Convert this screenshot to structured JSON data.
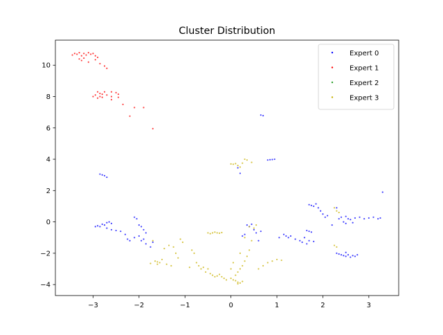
{
  "chart_data": {
    "type": "scatter",
    "title": "Cluster Distribution",
    "xlabel": "",
    "ylabel": "",
    "xlim": [
      -3.82,
      3.65
    ],
    "ylim": [
      -4.7,
      11.6
    ],
    "xticks": [
      -3,
      -2,
      -1,
      0,
      1,
      2,
      3
    ],
    "xtick_labels": [
      "−3",
      "−2",
      "−1",
      "0",
      "1",
      "2",
      "3"
    ],
    "yticks": [
      -4,
      -2,
      0,
      2,
      4,
      6,
      8,
      10
    ],
    "ytick_labels": [
      "−4",
      "−2",
      "0",
      "2",
      "4",
      "6",
      "8",
      "10"
    ],
    "grid": false,
    "legend_position": "top-right",
    "series": [
      {
        "name": "Expert 0",
        "color": "#0000ff",
        "points": [
          [
            -2.85,
            3.05
          ],
          [
            -2.8,
            3.0
          ],
          [
            -2.75,
            2.95
          ],
          [
            -2.7,
            2.85
          ],
          [
            0.65,
            6.82
          ],
          [
            0.7,
            6.78
          ],
          [
            0.8,
            3.95
          ],
          [
            0.85,
            3.97
          ],
          [
            0.9,
            3.98
          ],
          [
            0.95,
            4.0
          ],
          [
            0.15,
            3.45
          ],
          [
            0.2,
            3.1
          ],
          [
            3.3,
            1.9
          ],
          [
            -2.95,
            -0.3
          ],
          [
            -2.9,
            -0.25
          ],
          [
            -2.85,
            -0.3
          ],
          [
            -2.8,
            -0.15
          ],
          [
            -2.75,
            -0.2
          ],
          [
            -2.7,
            -0.05
          ],
          [
            -2.65,
            0.0
          ],
          [
            -2.6,
            -0.1
          ],
          [
            -2.7,
            -0.4
          ],
          [
            -2.6,
            -0.5
          ],
          [
            -2.5,
            -0.55
          ],
          [
            -2.4,
            -0.6
          ],
          [
            -2.3,
            -0.8
          ],
          [
            -2.25,
            -1.1
          ],
          [
            -2.2,
            -1.2
          ],
          [
            -2.1,
            -1.0
          ],
          [
            -2.0,
            -0.9
          ],
          [
            -1.95,
            -1.2
          ],
          [
            -1.9,
            -1.1
          ],
          [
            -1.85,
            -1.4
          ],
          [
            -1.75,
            -1.6
          ],
          [
            -1.7,
            -1.3
          ],
          [
            -2.1,
            0.3
          ],
          [
            -2.05,
            0.2
          ],
          [
            -2.0,
            -0.2
          ],
          [
            -1.95,
            -0.3
          ],
          [
            -1.9,
            -0.5
          ],
          [
            -1.85,
            -0.7
          ],
          [
            0.35,
            -0.2
          ],
          [
            0.4,
            -0.3
          ],
          [
            0.45,
            -0.15
          ],
          [
            0.5,
            -0.5
          ],
          [
            0.55,
            -0.7
          ],
          [
            0.6,
            -1.2
          ],
          [
            0.65,
            -0.6
          ],
          [
            0.3,
            -0.8
          ],
          [
            0.25,
            -0.9
          ],
          [
            1.05,
            -1.0
          ],
          [
            1.15,
            -0.8
          ],
          [
            1.2,
            -0.9
          ],
          [
            1.25,
            -1.0
          ],
          [
            1.3,
            -0.9
          ],
          [
            1.4,
            -1.1
          ],
          [
            1.5,
            -1.2
          ],
          [
            1.55,
            -1.3
          ],
          [
            1.6,
            -1.0
          ],
          [
            1.7,
            -1.2
          ],
          [
            1.8,
            -1.25
          ],
          [
            1.65,
            -1.4
          ],
          [
            1.65,
            -0.55
          ],
          [
            1.7,
            -0.6
          ],
          [
            1.75,
            -0.65
          ],
          [
            1.7,
            1.1
          ],
          [
            1.75,
            1.05
          ],
          [
            1.8,
            1.0
          ],
          [
            1.85,
            1.15
          ],
          [
            1.9,
            0.9
          ],
          [
            1.95,
            0.7
          ],
          [
            2.0,
            0.5
          ],
          [
            2.05,
            0.3
          ],
          [
            2.1,
            0.4
          ],
          [
            2.2,
            -0.2
          ],
          [
            2.3,
            0.9
          ],
          [
            2.35,
            0.2
          ],
          [
            2.4,
            0.3
          ],
          [
            2.45,
            0.0
          ],
          [
            2.5,
            -0.1
          ],
          [
            2.55,
            0.2
          ],
          [
            2.6,
            0.15
          ],
          [
            2.7,
            0.25
          ],
          [
            2.8,
            0.3
          ],
          [
            2.9,
            0.2
          ],
          [
            3.0,
            0.25
          ],
          [
            3.1,
            0.3
          ],
          [
            3.2,
            0.2
          ],
          [
            3.25,
            0.25
          ],
          [
            2.65,
            -0.05
          ],
          [
            2.5,
            0.35
          ],
          [
            2.3,
            -2.0
          ],
          [
            2.35,
            -2.05
          ],
          [
            2.4,
            -2.1
          ],
          [
            2.45,
            -2.15
          ],
          [
            2.5,
            -2.2
          ],
          [
            2.55,
            -2.1
          ],
          [
            2.6,
            -2.25
          ],
          [
            2.65,
            -2.15
          ],
          [
            2.7,
            -2.2
          ],
          [
            2.75,
            -2.1
          ],
          [
            2.5,
            -1.95
          ]
        ]
      },
      {
        "name": "Expert 1",
        "color": "#ff0000",
        "points": [
          [
            -3.45,
            10.65
          ],
          [
            -3.4,
            10.75
          ],
          [
            -3.35,
            10.7
          ],
          [
            -3.3,
            10.8
          ],
          [
            -3.25,
            10.6
          ],
          [
            -3.2,
            10.75
          ],
          [
            -3.15,
            10.65
          ],
          [
            -3.1,
            10.8
          ],
          [
            -3.05,
            10.7
          ],
          [
            -3.0,
            10.75
          ],
          [
            -2.95,
            10.6
          ],
          [
            -2.9,
            10.5
          ],
          [
            -3.3,
            10.4
          ],
          [
            -3.25,
            10.3
          ],
          [
            -3.2,
            10.45
          ],
          [
            -3.1,
            10.2
          ],
          [
            -2.95,
            10.35
          ],
          [
            -2.85,
            10.1
          ],
          [
            -2.75,
            9.95
          ],
          [
            -2.7,
            9.8
          ],
          [
            -2.9,
            8.3
          ],
          [
            -2.85,
            8.2
          ],
          [
            -2.8,
            8.15
          ],
          [
            -2.75,
            8.3
          ],
          [
            -2.6,
            8.3
          ],
          [
            -2.5,
            8.25
          ],
          [
            -2.45,
            8.15
          ],
          [
            -2.9,
            7.9
          ],
          [
            -2.85,
            8.0
          ],
          [
            -2.8,
            7.95
          ],
          [
            -2.95,
            8.1
          ],
          [
            -3.0,
            8.0
          ],
          [
            -2.7,
            8.1
          ],
          [
            -2.6,
            8.0
          ],
          [
            -2.45,
            7.95
          ],
          [
            -2.6,
            7.8
          ],
          [
            -2.35,
            7.5
          ],
          [
            -2.2,
            6.75
          ],
          [
            -2.1,
            7.3
          ],
          [
            -1.9,
            7.3
          ],
          [
            -1.7,
            5.95
          ]
        ]
      },
      {
        "name": "Expert 2",
        "color": "#2ca02c",
        "points": []
      },
      {
        "name": "Expert 3",
        "color": "#c8b000",
        "points": [
          [
            0.0,
            3.7
          ],
          [
            0.05,
            3.68
          ],
          [
            0.1,
            3.72
          ],
          [
            0.15,
            3.6
          ],
          [
            0.2,
            3.5
          ],
          [
            0.25,
            3.75
          ],
          [
            0.3,
            4.0
          ],
          [
            0.35,
            3.95
          ],
          [
            0.45,
            3.8
          ],
          [
            -1.7,
            -1.2
          ],
          [
            -1.65,
            -2.5
          ],
          [
            -1.6,
            -2.7
          ],
          [
            -1.55,
            -2.6
          ],
          [
            -1.5,
            -2.4
          ],
          [
            -1.45,
            -1.7
          ],
          [
            -1.4,
            -2.7
          ],
          [
            -1.35,
            -1.5
          ],
          [
            -1.3,
            -2.8
          ],
          [
            -1.25,
            -1.6
          ],
          [
            -1.2,
            -2.0
          ],
          [
            -1.15,
            -2.3
          ],
          [
            -1.1,
            -1.1
          ],
          [
            -1.05,
            -1.3
          ],
          [
            -0.9,
            -2.9
          ],
          [
            -0.85,
            -1.8
          ],
          [
            -0.8,
            -2.0
          ],
          [
            -0.75,
            -2.6
          ],
          [
            -0.7,
            -2.8
          ],
          [
            -0.65,
            -3.0
          ],
          [
            -0.6,
            -2.9
          ],
          [
            -0.55,
            -3.2
          ],
          [
            -0.5,
            -3.0
          ],
          [
            -0.45,
            -3.3
          ],
          [
            -0.4,
            -3.4
          ],
          [
            -0.35,
            -3.5
          ],
          [
            -0.3,
            -3.45
          ],
          [
            -0.25,
            -3.35
          ],
          [
            -0.2,
            -3.5
          ],
          [
            -0.15,
            -3.6
          ],
          [
            -0.5,
            -0.7
          ],
          [
            -0.45,
            -0.75
          ],
          [
            -0.4,
            -0.7
          ],
          [
            -0.35,
            -0.65
          ],
          [
            -0.3,
            -0.7
          ],
          [
            -0.25,
            -0.72
          ],
          [
            -0.2,
            -0.68
          ],
          [
            0.0,
            -3.6
          ],
          [
            0.05,
            -3.7
          ],
          [
            0.1,
            -3.75
          ],
          [
            0.15,
            -3.85
          ],
          [
            0.2,
            -3.9
          ],
          [
            0.25,
            -3.8
          ],
          [
            0.1,
            -3.4
          ],
          [
            0.15,
            -3.2
          ],
          [
            0.2,
            -3.0
          ],
          [
            0.25,
            -2.8
          ],
          [
            0.3,
            -2.5
          ],
          [
            0.35,
            -2.2
          ],
          [
            0.4,
            -1.8
          ],
          [
            0.45,
            -1.2
          ],
          [
            0.3,
            -1.0
          ],
          [
            0.2,
            -2.0
          ],
          [
            0.05,
            -2.6
          ],
          [
            0.0,
            -3.0
          ],
          [
            0.6,
            -3.0
          ],
          [
            0.7,
            -2.8
          ],
          [
            0.8,
            -2.6
          ],
          [
            0.9,
            -2.5
          ],
          [
            1.0,
            -2.4
          ],
          [
            1.1,
            -2.45
          ],
          [
            0.4,
            -0.3
          ],
          [
            0.5,
            -0.4
          ],
          [
            0.55,
            -0.2
          ],
          [
            2.25,
            0.9
          ],
          [
            2.3,
            0.7
          ],
          [
            2.35,
            0.6
          ],
          [
            2.25,
            -1.5
          ],
          [
            2.3,
            -1.6
          ],
          [
            -1.75,
            -2.65
          ],
          [
            -1.6,
            -2.55
          ],
          [
            -0.1,
            -3.7
          ],
          [
            0.15,
            -3.95
          ]
        ]
      }
    ]
  }
}
